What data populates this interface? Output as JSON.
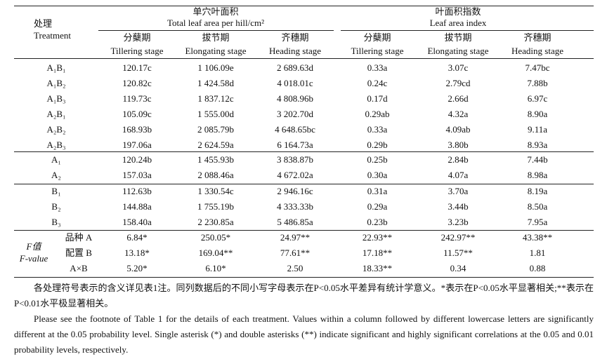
{
  "header": {
    "treatment_zh": "处理",
    "treatment_en": "Treatment",
    "group1": {
      "zh": "单穴叶面积",
      "en": "Total leaf area per hill/cm²",
      "stages": [
        {
          "zh": "分蘖期",
          "en": "Tillering stage"
        },
        {
          "zh": "拔节期",
          "en": "Elongating stage"
        },
        {
          "zh": "齐穗期",
          "en": "Heading stage"
        }
      ]
    },
    "group2": {
      "zh": "叶面积指数",
      "en": "Leaf area index",
      "stages": [
        {
          "zh": "分蘖期",
          "en": "Tillering stage"
        },
        {
          "zh": "拔节期",
          "en": "Elongating stage"
        },
        {
          "zh": "齐穗期",
          "en": "Heading stage"
        }
      ]
    }
  },
  "sections": [
    {
      "rows": [
        {
          "label": "A₁B₁",
          "cells": [
            "120.17c",
            "1 106.09e",
            "2 689.63d",
            "0.33a",
            "3.07c",
            "7.47bc"
          ]
        },
        {
          "label": "A₁B₂",
          "cells": [
            "120.82c",
            "1 424.58d",
            "4 018.01c",
            "0.24c",
            "2.79cd",
            "7.88b"
          ]
        },
        {
          "label": "A₁B₃",
          "cells": [
            "119.73c",
            "1 837.12c",
            "4 808.96b",
            "0.17d",
            "2.66d",
            "6.97c"
          ]
        },
        {
          "label": "A₂B₁",
          "cells": [
            "105.09c",
            "1 555.00d",
            "3 202.70d",
            "0.29ab",
            "4.32a",
            "8.90a"
          ]
        },
        {
          "label": "A₂B₂",
          "cells": [
            "168.93b",
            "2 085.79b",
            "4 648.65bc",
            "0.33a",
            "4.09ab",
            "9.11a"
          ]
        },
        {
          "label": "A₂B₃",
          "cells": [
            "197.06a",
            "2 624.59a",
            "6 164.73a",
            "0.29b",
            "3.80b",
            "8.93a"
          ]
        }
      ]
    },
    {
      "rows": [
        {
          "label": "A₁",
          "cells": [
            "120.24b",
            "1 455.93b",
            "3 838.87b",
            "0.25b",
            "2.84b",
            "7.44b"
          ]
        },
        {
          "label": "A₂",
          "cells": [
            "157.03a",
            "2 088.46a",
            "4 672.02a",
            "0.30a",
            "4.07a",
            "8.98a"
          ]
        }
      ]
    },
    {
      "rows": [
        {
          "label": "B₁",
          "cells": [
            "112.63b",
            "1 330.54c",
            "2 946.16c",
            "0.31a",
            "3.70a",
            "8.19a"
          ]
        },
        {
          "label": "B₂",
          "cells": [
            "144.88a",
            "1 755.19b",
            "4 333.33b",
            "0.29a",
            "3.44b",
            "8.50a"
          ]
        },
        {
          "label": "B₃",
          "cells": [
            "158.40a",
            "2 230.85a",
            "5 486.85a",
            "0.23b",
            "3.23b",
            "7.95a"
          ]
        }
      ]
    }
  ],
  "f_value": {
    "label_zh": "F值",
    "label_en": "F-value",
    "rows": [
      {
        "label": "品种 A",
        "cells": [
          "6.84*",
          "250.05*",
          "24.97**",
          "22.93**",
          "242.97**",
          "43.38**"
        ]
      },
      {
        "label": "配置 B",
        "cells": [
          "13.18*",
          "169.04**",
          "77.61**",
          "17.18**",
          "11.57**",
          "1.81"
        ]
      },
      {
        "label": "A×B",
        "cells": [
          "5.20*",
          "6.10*",
          "2.50",
          "18.33**",
          "0.34",
          "0.88"
        ]
      }
    ]
  },
  "notes": {
    "zh": "各处理符号表示的含义详见表1注。同列数据后的不同小写字母表示在P<0.05水平差异有统计学意义。*表示在P<0.05水平显著相关;**表示在P<0.01水平极显著相关。",
    "en": "Please see the footnote of Table 1 for the details of each treatment. Values within a column followed by different lowercase letters are significantly different at the 0.05 probability level. Single asterisk (*) and double asterisks (**) indicate significant and highly significant correlations at the 0.05 and 0.01 probability levels, respectively."
  }
}
